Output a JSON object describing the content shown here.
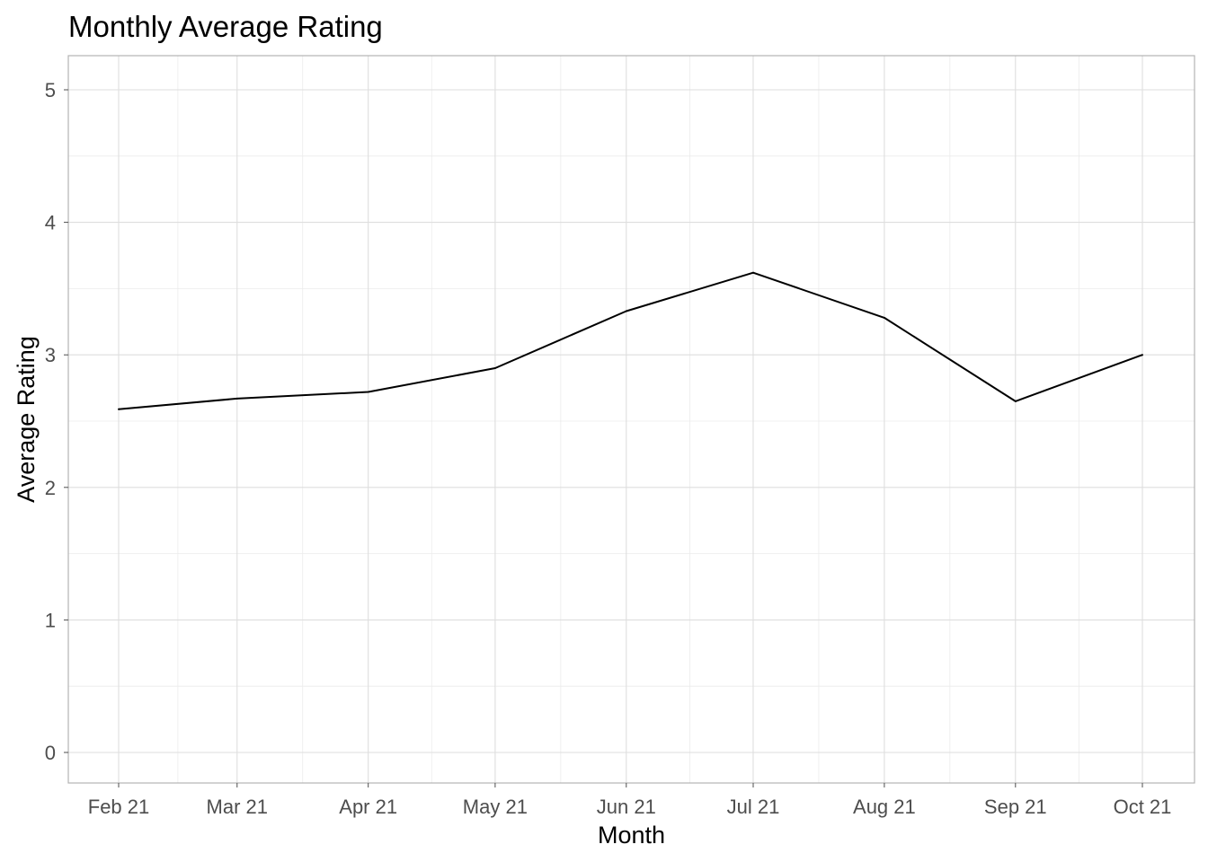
{
  "chart_data": {
    "type": "line",
    "title": "Monthly Average Rating",
    "xlabel": "Month",
    "ylabel": "Average Rating",
    "x": [
      "2021-02-01",
      "2021-03-01",
      "2021-04-01",
      "2021-05-01",
      "2021-06-01",
      "2021-07-01",
      "2021-08-01",
      "2021-09-01",
      "2021-10-01"
    ],
    "x_tick_labels": [
      "Feb 21",
      "Mar 21",
      "Apr 21",
      "May 21",
      "Jun 21",
      "Jul 21",
      "Aug 21",
      "Sep 21",
      "Oct 21"
    ],
    "series": [
      {
        "values": [
          2.59,
          2.67,
          2.72,
          2.9,
          3.33,
          3.62,
          3.28,
          2.65,
          3.0
        ],
        "color": "#000000"
      }
    ],
    "ylim": [
      0,
      5
    ],
    "y_ticks": [
      0,
      1,
      2,
      3,
      4,
      5
    ],
    "grid": true,
    "legend": "none"
  }
}
